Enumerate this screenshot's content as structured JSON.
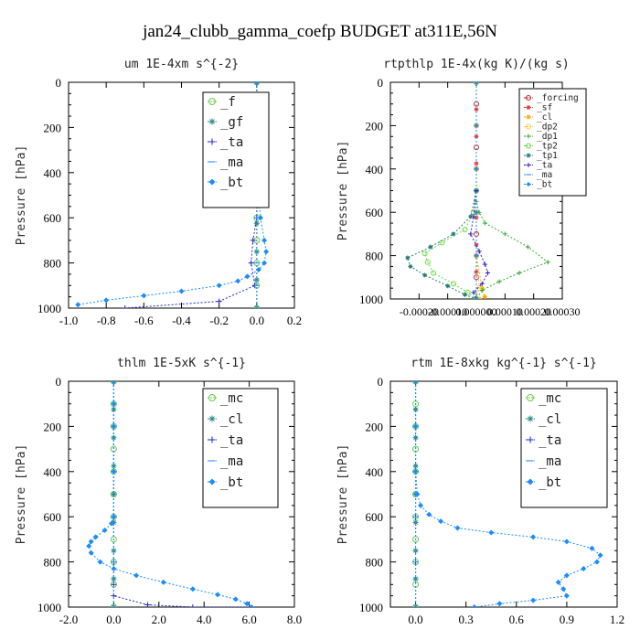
{
  "figure": {
    "title": "jan24_clubb_gamma_coefp  BUDGET at311E,56N"
  },
  "chart_data": [
    {
      "type": "line",
      "title": "um  1E-4xm s^{-2}",
      "ylabel": "Pressure [hPa]",
      "xlabel": "",
      "xlim": [
        -1.0,
        0.2
      ],
      "ylim": [
        1000,
        0
      ],
      "xticks": [
        "-1.0",
        "-0.8",
        "-0.6",
        "-0.4",
        "-0.2",
        "0.0",
        "0.2"
      ],
      "yticks": [
        "0",
        "200",
        "400",
        "600",
        "800",
        "1000"
      ],
      "legend_position": "top-right",
      "series": [
        {
          "name": "_f",
          "color": "#66cc44",
          "marker": "circle",
          "x": [
            0.0,
            0.0,
            0.0,
            0.0,
            0.0,
            0.0,
            0.0,
            0.0,
            0.0,
            0.0,
            0.0
          ],
          "y": [
            0,
            100,
            200,
            300,
            400,
            500,
            600,
            700,
            800,
            900,
            1000
          ]
        },
        {
          "name": "_gf",
          "color": "#2a8a8a",
          "marker": "star",
          "x": [
            0.0,
            0.0,
            0.0,
            0.0,
            0.0,
            0.0,
            0.0,
            0.0,
            0.0
          ],
          "y": [
            0,
            125,
            250,
            375,
            500,
            625,
            750,
            875,
            1000
          ]
        },
        {
          "name": "_ta",
          "color": "#2222cc",
          "marker": "plus",
          "x": [
            0.0,
            0.0,
            0.0,
            0.0,
            -0.02,
            -0.03,
            -0.01,
            -0.2,
            -0.7
          ],
          "y": [
            0,
            200,
            400,
            600,
            700,
            800,
            900,
            970,
            1000
          ]
        },
        {
          "name": "_ma",
          "color": "#3399ff",
          "marker": "dash",
          "x": [
            0.0,
            0.0,
            0.0,
            0.0,
            0.0,
            0.0,
            0.0
          ],
          "y": [
            0,
            200,
            400,
            600,
            800,
            900,
            1000
          ]
        },
        {
          "name": "_bt",
          "color": "#1a8cff",
          "marker": "diamond",
          "x": [
            0.0,
            0.0,
            0.0,
            0.0,
            0.0,
            0.01,
            0.02,
            0.04,
            0.05,
            0.04,
            0.01,
            -0.05,
            -0.1,
            -0.2,
            -0.4,
            -0.6,
            -0.8,
            -0.95
          ],
          "y": [
            0,
            100,
            200,
            300,
            400,
            500,
            600,
            700,
            750,
            800,
            830,
            860,
            880,
            900,
            925,
            945,
            965,
            985
          ]
        }
      ]
    },
    {
      "type": "line",
      "title": "rtpthlp  1E-4x(kg K)/(kg s)",
      "ylabel": "Pressure [hPa]",
      "xlabel": "",
      "xlim": [
        -0.0003,
        0.0003
      ],
      "ylim": [
        1000,
        0
      ],
      "xticks": [
        "-0.00020",
        "-0.00010",
        "0.000000",
        "0.00010",
        "0.00020",
        "0.00030"
      ],
      "yticks": [
        "0",
        "200",
        "400",
        "600",
        "800",
        "1000"
      ],
      "legend_position": "top-right",
      "series": [
        {
          "name": "_forcing",
          "color": "#cc2222",
          "marker": "circle",
          "x": [
            0,
            0,
            0,
            0,
            0,
            0,
            0,
            0,
            0,
            0,
            0
          ],
          "y": [
            0,
            100,
            200,
            300,
            400,
            500,
            600,
            700,
            800,
            900,
            1000
          ]
        },
        {
          "name": "_sf",
          "color": "#ee3333",
          "marker": "star",
          "x": [
            0,
            0,
            0,
            0,
            0,
            0,
            0,
            0,
            0
          ],
          "y": [
            0,
            125,
            250,
            375,
            500,
            625,
            750,
            875,
            1000
          ]
        },
        {
          "name": "_cl",
          "color": "#ffaa00",
          "marker": "star",
          "x": [
            0,
            0,
            0,
            0,
            0,
            2e-05,
            3e-05,
            1e-05
          ],
          "y": [
            0,
            200,
            400,
            600,
            800,
            950,
            990,
            1000
          ]
        },
        {
          "name": "_dp2",
          "color": "#ffcc33",
          "marker": "circle",
          "x": [
            0,
            0,
            0,
            0,
            0,
            1e-05,
            0
          ],
          "y": [
            0,
            200,
            400,
            600,
            800,
            950,
            1000
          ]
        },
        {
          "name": "_dp1",
          "color": "#33aa33",
          "marker": "plus",
          "x": [
            0,
            0,
            0,
            1e-05,
            3e-05,
            0.0001,
            0.00018,
            0.00025,
            0.00015,
            8e-05,
            2e-05,
            0
          ],
          "y": [
            0,
            400,
            550,
            600,
            650,
            700,
            760,
            830,
            880,
            920,
            960,
            1000
          ]
        },
        {
          "name": "_tp2",
          "color": "#66dd44",
          "marker": "circle",
          "x": [
            0,
            0,
            -1e-05,
            -4e-05,
            -0.00012,
            -0.00018,
            -0.00017,
            -0.00015,
            -8e-05,
            -3e-05,
            0
          ],
          "y": [
            0,
            500,
            600,
            680,
            740,
            790,
            830,
            880,
            930,
            970,
            1000
          ]
        },
        {
          "name": "_tp1",
          "color": "#2a7a7a",
          "marker": "star",
          "x": [
            0,
            0,
            -2e-05,
            -8e-05,
            -0.00016,
            -0.00024,
            -0.00023,
            -0.00018,
            -0.0001,
            -4e-05,
            0
          ],
          "y": [
            0,
            500,
            620,
            700,
            760,
            810,
            850,
            890,
            940,
            980,
            1000
          ]
        },
        {
          "name": "_ta",
          "color": "#2222cc",
          "marker": "plus",
          "x": [
            0,
            0,
            -1e-05,
            -2e-05,
            1e-05,
            3e-05,
            4e-05,
            2e-05,
            -1e-05,
            0
          ],
          "y": [
            0,
            500,
            620,
            700,
            780,
            840,
            880,
            930,
            970,
            1000
          ]
        },
        {
          "name": "_ma",
          "color": "#3399ff",
          "marker": "dash",
          "x": [
            0,
            0,
            0,
            0,
            0,
            0
          ],
          "y": [
            0,
            200,
            400,
            600,
            800,
            1000
          ]
        },
        {
          "name": "_bt",
          "color": "#1a8cff",
          "marker": "diamond",
          "x": [
            0,
            0,
            0,
            0,
            0,
            0
          ],
          "y": [
            0,
            200,
            400,
            600,
            800,
            1000
          ]
        }
      ]
    },
    {
      "type": "line",
      "title": "thlm  1E-5xK s^{-1}",
      "ylabel": "Pressure [hPa]",
      "xlabel": "",
      "xlim": [
        -2.0,
        8.0
      ],
      "ylim": [
        1000,
        0
      ],
      "xticks": [
        "-2.0",
        "0.0",
        "2.0",
        "4.0",
        "6.0",
        "8.0"
      ],
      "yticks": [
        "0",
        "200",
        "400",
        "600",
        "800",
        "1000"
      ],
      "legend_position": "top-right",
      "series": [
        {
          "name": "_mc",
          "color": "#66cc44",
          "marker": "circle",
          "x": [
            0,
            0,
            0,
            0,
            0,
            0,
            0,
            0,
            0,
            0,
            0
          ],
          "y": [
            0,
            100,
            200,
            300,
            400,
            500,
            600,
            700,
            800,
            900,
            1000
          ]
        },
        {
          "name": "_cl",
          "color": "#2a8a8a",
          "marker": "star",
          "x": [
            0,
            0,
            0,
            0,
            0,
            0,
            0,
            0,
            0
          ],
          "y": [
            0,
            125,
            250,
            375,
            500,
            625,
            750,
            875,
            1000
          ]
        },
        {
          "name": "_ta",
          "color": "#2222cc",
          "marker": "plus",
          "x": [
            0,
            0,
            0,
            0,
            0,
            0,
            0,
            1.5,
            3.5,
            6.0
          ],
          "y": [
            0,
            200,
            400,
            600,
            800,
            900,
            950,
            990,
            1000,
            1000
          ]
        },
        {
          "name": "_ma",
          "color": "#3399ff",
          "marker": "dash",
          "x": [
            0,
            0,
            0,
            0,
            0,
            0
          ],
          "y": [
            0,
            200,
            400,
            600,
            800,
            1000
          ]
        },
        {
          "name": "_bt",
          "color": "#1a8cff",
          "marker": "diamond",
          "x": [
            0,
            0,
            0,
            0,
            0,
            -0.1,
            -0.4,
            -0.8,
            -1.0,
            -1.1,
            -1.0,
            -0.6,
            0.0,
            1.0,
            2.2,
            3.5,
            4.6,
            5.4,
            5.9,
            6.1
          ],
          "y": [
            0,
            100,
            200,
            400,
            600,
            630,
            660,
            690,
            710,
            730,
            760,
            800,
            830,
            860,
            890,
            920,
            945,
            965,
            985,
            1000
          ]
        }
      ]
    },
    {
      "type": "line",
      "title": "rtm  1E-8xkg kg^{-1} s^{-1}",
      "ylabel": "Pressure [hPa]",
      "xlabel": "",
      "xlim": [
        -0.15,
        1.2
      ],
      "ylim": [
        1000,
        0
      ],
      "xticks": [
        "0.0",
        "0.3",
        "0.6",
        "0.9",
        "1.2"
      ],
      "yticks": [
        "0",
        "200",
        "400",
        "600",
        "800",
        "1000"
      ],
      "legend_position": "top-right",
      "series": [
        {
          "name": "_mc",
          "color": "#66cc44",
          "marker": "circle",
          "x": [
            0,
            0,
            0,
            0,
            0,
            0,
            0,
            0,
            0,
            0,
            0
          ],
          "y": [
            0,
            100,
            200,
            300,
            400,
            500,
            600,
            700,
            800,
            900,
            1000
          ]
        },
        {
          "name": "_cl",
          "color": "#2a8a8a",
          "marker": "star",
          "x": [
            0,
            0,
            0,
            0,
            0,
            0,
            0,
            0,
            0
          ],
          "y": [
            0,
            125,
            250,
            375,
            500,
            625,
            750,
            875,
            1000
          ]
        },
        {
          "name": "_ta",
          "color": "#2222cc",
          "marker": "plus",
          "x": [
            0,
            0,
            0,
            0,
            0,
            0
          ],
          "y": [
            0,
            200,
            400,
            600,
            800,
            1000
          ]
        },
        {
          "name": "_ma",
          "color": "#3399ff",
          "marker": "dash",
          "x": [
            0,
            0,
            0,
            0,
            0,
            0
          ],
          "y": [
            0,
            200,
            400,
            600,
            800,
            1000
          ]
        },
        {
          "name": "_bt",
          "color": "#1a8cff",
          "marker": "diamond",
          "x": [
            0,
            0,
            0,
            0.01,
            0.03,
            0.08,
            0.15,
            0.25,
            0.45,
            0.7,
            0.9,
            1.05,
            1.1,
            1.08,
            1.0,
            0.9,
            0.85,
            0.88,
            0.9,
            0.7,
            0.5,
            0.35
          ],
          "y": [
            0,
            200,
            400,
            500,
            550,
            590,
            620,
            650,
            670,
            690,
            710,
            740,
            770,
            800,
            830,
            860,
            890,
            920,
            950,
            970,
            985,
            1000
          ]
        }
      ]
    }
  ]
}
